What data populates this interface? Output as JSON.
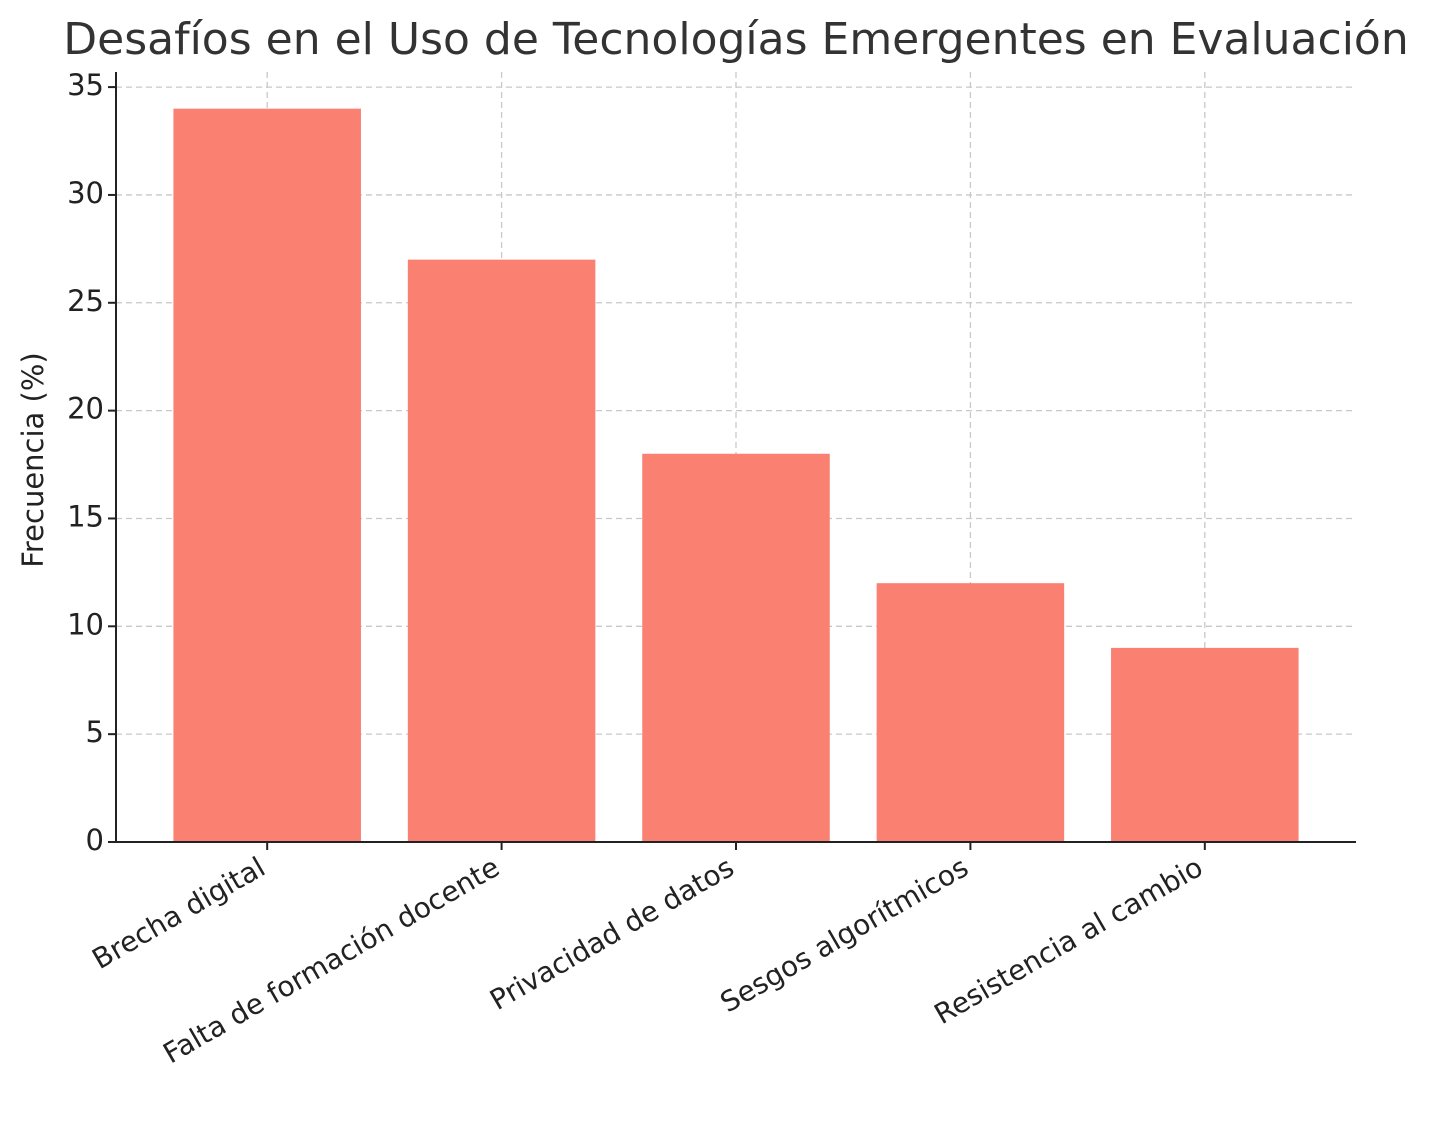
{
  "chart_data": {
    "type": "bar",
    "title": "Desafíos en el Uso de Tecnologías Emergentes en Evaluación",
    "y_label": "Frecuencia (%)",
    "categories": [
      "Brecha digital",
      "Falta de formación docente",
      "Privacidad de datos",
      "Sesgos algorítmicos",
      "Resistencia al cambio"
    ],
    "values": [
      34,
      27,
      18,
      12,
      9
    ],
    "color": "#fa8072",
    "ylim": [
      0,
      35.7
    ],
    "yticks": [
      0,
      5,
      10,
      15,
      20,
      25,
      30,
      35
    ],
    "grid": true
  }
}
